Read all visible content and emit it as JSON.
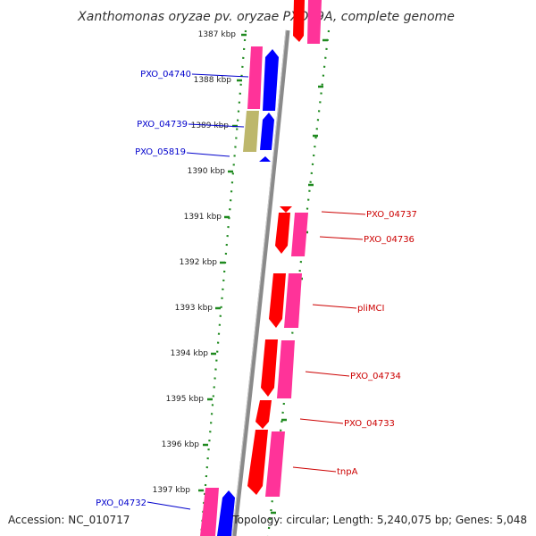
{
  "title": "Xanthomonas oryzae pv. oryzae PXO99A, complete genome",
  "footer": {
    "accession": "Accession: NC_010717",
    "topology": "Topology: circular; Length: 5,240,075 bp; Genes: 5,048"
  },
  "ticks": [
    "1387 kbp",
    "1388 kbp",
    "1389 kbp",
    "1390 kbp",
    "1391 kbp",
    "1392 kbp",
    "1393 kbp",
    "1394 kbp",
    "1395 kbp",
    "1396 kbp",
    "1397 kbp"
  ],
  "genes_left": [
    "PXO_04740",
    "PXO_04739",
    "PXO_05819",
    "PXO_04732"
  ],
  "genes_right": [
    "PXO_04737",
    "PXO_04736",
    "pliMCI",
    "PXO_04734",
    "PXO_04733",
    "tnpA"
  ],
  "colors": {
    "backbone": "#8a8a8a",
    "dots": "#1f8a1f",
    "cds_red": "#ff0000",
    "gene_pink": "#ff3399",
    "cds_blue": "#0000ff",
    "khaki": "#bdb76b",
    "label_blue": "#0000cc",
    "label_red": "#cc0000"
  }
}
